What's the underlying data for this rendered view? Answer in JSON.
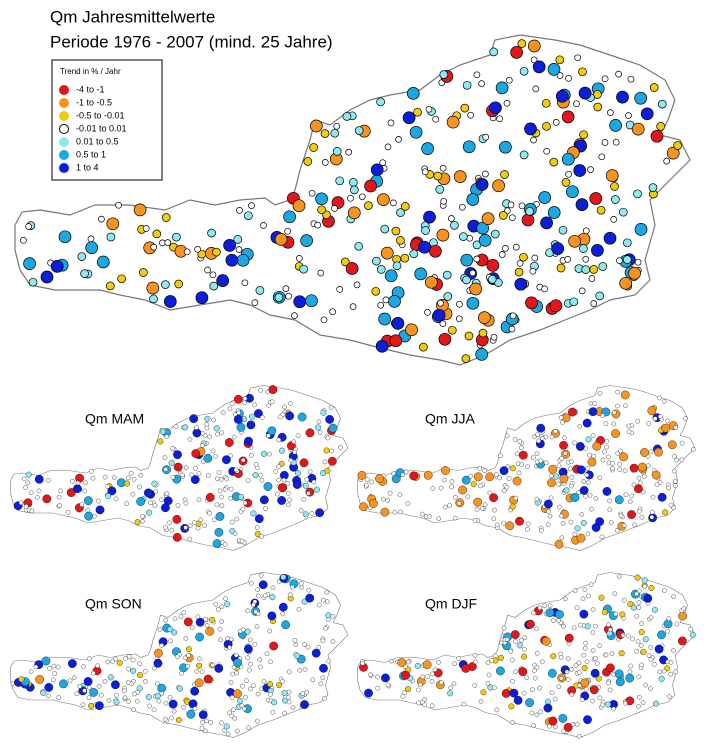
{
  "title": "Qm Jahresmittelwerte",
  "subtitle": "Periode 1976 - 2007 (mind. 25 Jahre)",
  "legend": {
    "title": "Trend in  % / Jahr",
    "items": [
      {
        "label": "-4  to  -1",
        "color": "#e3161c"
      },
      {
        "label": "-1  to  -0.5",
        "color": "#f7931e"
      },
      {
        "label": "-0.5  to  -0.01",
        "color": "#f2cb0d"
      },
      {
        "label": "-0.01  to  0.01",
        "color": "#ffffff"
      },
      {
        "label": "0.01  to  0.5",
        "color": "#8ee9f2"
      },
      {
        "label": "0.5  to  1",
        "color": "#1ca6e2"
      },
      {
        "label": "1  to  4",
        "color": "#0b1fd8"
      }
    ]
  },
  "panels": [
    {
      "label": "Qm MAM"
    },
    {
      "label": "Qm JJA"
    },
    {
      "label": "Qm SON"
    },
    {
      "label": "Qm DJF"
    }
  ]
}
